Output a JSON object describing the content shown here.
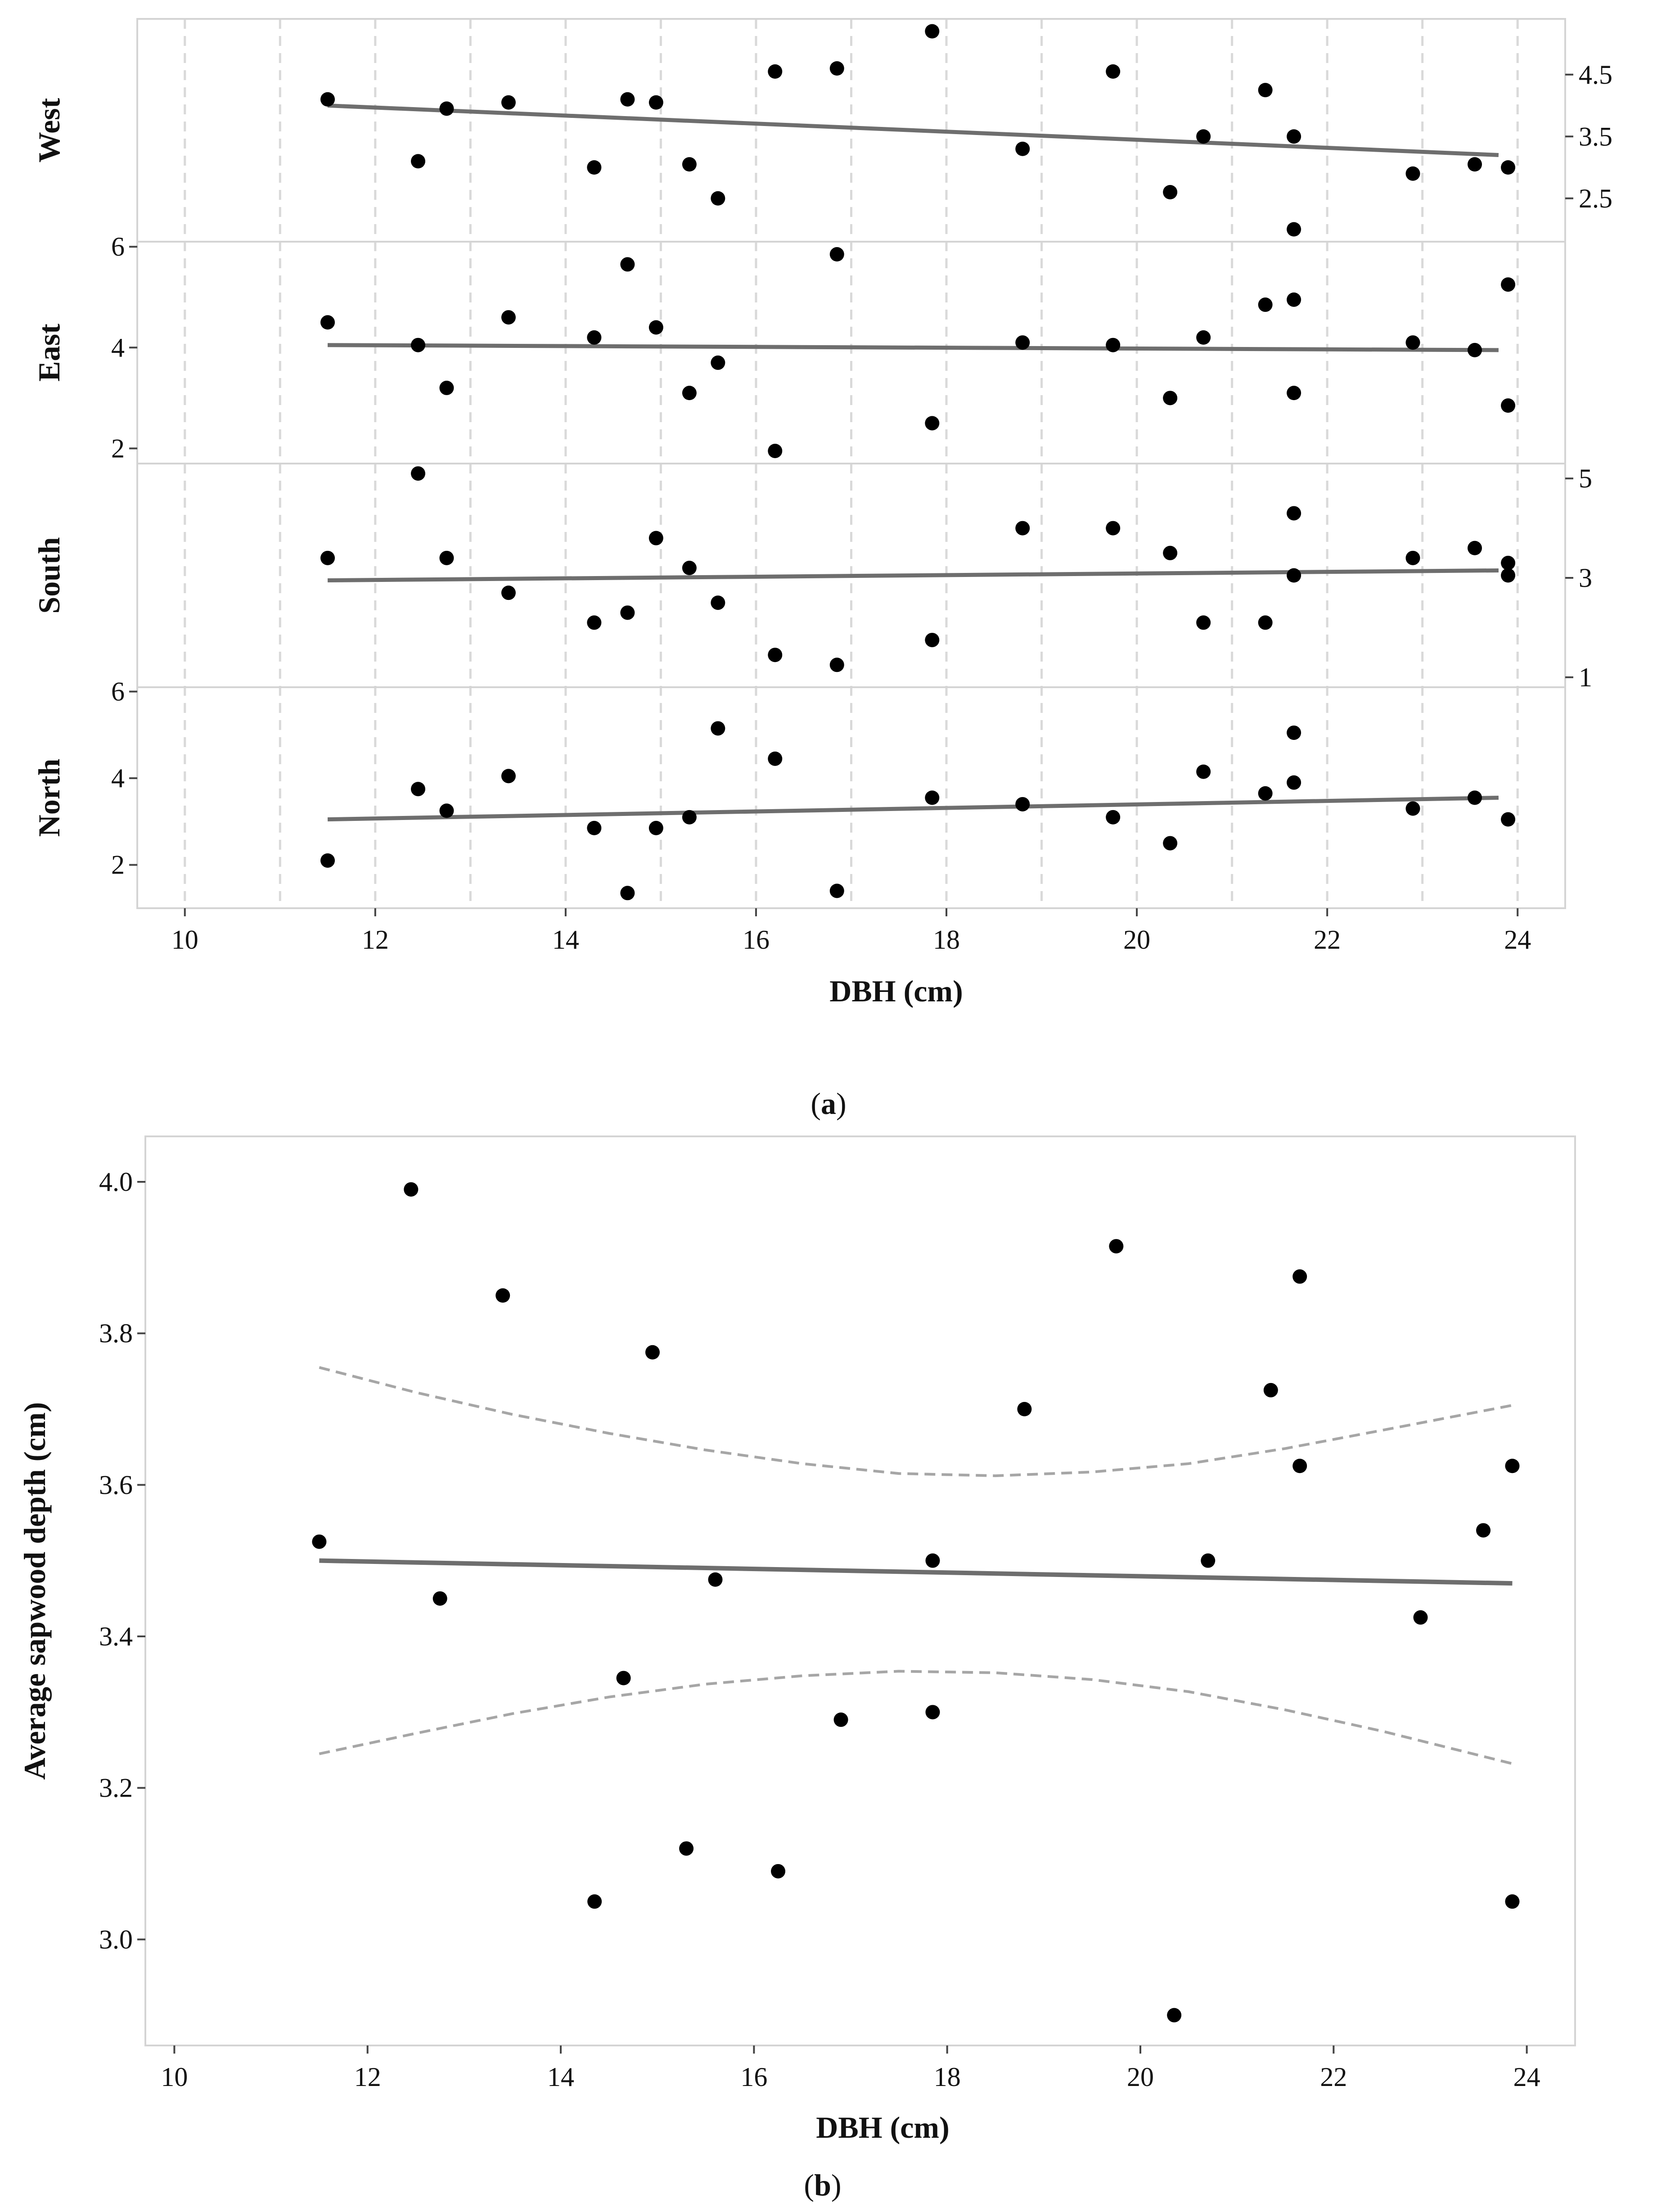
{
  "chart_data": [
    {
      "id": "a",
      "type": "scatter",
      "caption_letter": "a",
      "xlabel": "DBH (cm)",
      "xlim": [
        9.5,
        24.5
      ],
      "x_ticks": [
        "10",
        "12",
        "14",
        "16",
        "18",
        "20",
        "22",
        "24"
      ],
      "x_tick_values": [
        10,
        12,
        14,
        16,
        18,
        20,
        22,
        24
      ],
      "grid": "dashed vertical",
      "panels": [
        {
          "name": "West",
          "ylim": [
            1.8,
            5.4
          ],
          "y_ticks": [
            "2.5",
            "3.5",
            "4.5"
          ],
          "y_tick_values": [
            2.5,
            3.5,
            4.5
          ],
          "tick_side": "right",
          "fit": {
            "x": [
              11.5,
              23.8
            ],
            "y": [
              4.0,
              3.2
            ]
          },
          "points": [
            [
              11.5,
              4.1
            ],
            [
              12.45,
              3.1
            ],
            [
              12.75,
              3.95
            ],
            [
              13.4,
              4.05
            ],
            [
              14.3,
              3.0
            ],
            [
              14.65,
              4.1
            ],
            [
              14.95,
              4.05
            ],
            [
              15.3,
              3.05
            ],
            [
              15.6,
              2.5
            ],
            [
              16.2,
              4.55
            ],
            [
              16.85,
              4.6
            ],
            [
              17.85,
              5.2
            ],
            [
              18.8,
              3.3
            ],
            [
              19.75,
              4.55
            ],
            [
              20.35,
              2.6
            ],
            [
              20.7,
              3.5
            ],
            [
              21.35,
              4.25
            ],
            [
              21.65,
              3.5
            ],
            [
              21.65,
              2.0
            ],
            [
              22.9,
              2.9
            ],
            [
              23.55,
              3.05
            ],
            [
              23.9,
              3.0
            ]
          ]
        },
        {
          "name": "East",
          "ylim": [
            1.7,
            6.1
          ],
          "y_ticks": [
            "2",
            "4",
            "6"
          ],
          "y_tick_values": [
            2,
            4,
            6
          ],
          "tick_side": "left",
          "fit": {
            "x": [
              11.5,
              23.8
            ],
            "y": [
              4.05,
              3.95
            ]
          },
          "points": [
            [
              11.5,
              4.5
            ],
            [
              12.45,
              4.05
            ],
            [
              12.75,
              3.2
            ],
            [
              13.4,
              4.6
            ],
            [
              14.3,
              4.2
            ],
            [
              14.65,
              5.65
            ],
            [
              14.95,
              4.4
            ],
            [
              15.3,
              3.1
            ],
            [
              15.6,
              3.7
            ],
            [
              16.2,
              1.95
            ],
            [
              16.85,
              5.85
            ],
            [
              17.85,
              2.5
            ],
            [
              18.8,
              4.1
            ],
            [
              19.75,
              4.05
            ],
            [
              20.35,
              3.0
            ],
            [
              20.7,
              4.2
            ],
            [
              21.35,
              4.85
            ],
            [
              21.65,
              4.95
            ],
            [
              21.65,
              3.1
            ],
            [
              22.9,
              4.1
            ],
            [
              23.55,
              3.95
            ],
            [
              23.9,
              5.25
            ],
            [
              23.9,
              2.85
            ]
          ]
        },
        {
          "name": "South",
          "ylim": [
            0.8,
            5.3
          ],
          "y_ticks": [
            "1",
            "3",
            "5"
          ],
          "y_tick_values": [
            1,
            3,
            5
          ],
          "tick_side": "right",
          "fit": {
            "x": [
              11.5,
              23.8
            ],
            "y": [
              2.95,
              3.15
            ]
          },
          "points": [
            [
              11.5,
              3.4
            ],
            [
              12.45,
              5.1
            ],
            [
              12.75,
              3.4
            ],
            [
              13.4,
              2.7
            ],
            [
              14.3,
              2.1
            ],
            [
              14.65,
              2.3
            ],
            [
              14.95,
              3.8
            ],
            [
              15.3,
              3.2
            ],
            [
              15.6,
              2.5
            ],
            [
              16.2,
              1.45
            ],
            [
              16.85,
              1.25
            ],
            [
              17.85,
              1.75
            ],
            [
              18.8,
              4.0
            ],
            [
              19.75,
              4.0
            ],
            [
              20.35,
              3.5
            ],
            [
              20.7,
              2.1
            ],
            [
              21.35,
              2.1
            ],
            [
              21.65,
              4.3
            ],
            [
              21.65,
              3.05
            ],
            [
              22.9,
              3.4
            ],
            [
              23.55,
              3.6
            ],
            [
              23.9,
              3.3
            ],
            [
              23.9,
              3.05
            ]
          ]
        },
        {
          "name": "North",
          "ylim": [
            1.0,
            6.1
          ],
          "y_ticks": [
            "2",
            "4",
            "6"
          ],
          "y_tick_values": [
            2,
            4,
            6
          ],
          "tick_side": "left",
          "fit": {
            "x": [
              11.5,
              23.8
            ],
            "y": [
              3.05,
              3.55
            ]
          },
          "points": [
            [
              11.5,
              2.1
            ],
            [
              12.45,
              3.75
            ],
            [
              12.75,
              3.25
            ],
            [
              13.4,
              4.05
            ],
            [
              14.3,
              2.85
            ],
            [
              14.65,
              1.35
            ],
            [
              14.95,
              2.85
            ],
            [
              15.3,
              3.1
            ],
            [
              15.6,
              5.15
            ],
            [
              16.2,
              4.45
            ],
            [
              16.85,
              1.4
            ],
            [
              17.85,
              3.55
            ],
            [
              18.8,
              3.4
            ],
            [
              19.75,
              3.1
            ],
            [
              20.35,
              2.5
            ],
            [
              20.7,
              4.15
            ],
            [
              21.35,
              3.65
            ],
            [
              21.65,
              5.05
            ],
            [
              21.65,
              3.9
            ],
            [
              22.9,
              3.3
            ],
            [
              23.55,
              3.55
            ],
            [
              23.9,
              3.05
            ]
          ]
        }
      ]
    },
    {
      "id": "b",
      "type": "scatter",
      "caption_letter": "b",
      "xlabel": "DBH (cm)",
      "ylabel": "Average sapwood depth (cm)",
      "xlim": [
        9.7,
        24.5
      ],
      "ylim": [
        2.86,
        4.06
      ],
      "x_ticks": [
        "10",
        "12",
        "14",
        "16",
        "18",
        "20",
        "22",
        "24"
      ],
      "x_tick_values": [
        10,
        12,
        14,
        16,
        18,
        20,
        22,
        24
      ],
      "y_ticks": [
        "3.0",
        "3.2",
        "3.4",
        "3.6",
        "3.8",
        "4.0"
      ],
      "y_tick_values": [
        3.0,
        3.2,
        3.4,
        3.6,
        3.8,
        4.0
      ],
      "grid": "none",
      "fit": {
        "x": [
          11.5,
          23.85
        ],
        "y": [
          3.5,
          3.47
        ]
      },
      "confidence_upper": {
        "x": [
          11.5,
          12.5,
          13.5,
          14.5,
          15.5,
          16.5,
          17.5,
          18.5,
          19.5,
          20.5,
          21.5,
          22.5,
          23.85
        ],
        "y": [
          3.755,
          3.722,
          3.693,
          3.668,
          3.646,
          3.628,
          3.615,
          3.612,
          3.617,
          3.628,
          3.648,
          3.672,
          3.705
        ]
      },
      "confidence_lower": {
        "x": [
          11.5,
          12.5,
          13.5,
          14.5,
          15.5,
          16.5,
          17.5,
          18.5,
          19.5,
          20.5,
          21.5,
          22.5,
          23.85
        ],
        "y": [
          3.245,
          3.272,
          3.298,
          3.32,
          3.337,
          3.348,
          3.354,
          3.352,
          3.343,
          3.327,
          3.303,
          3.275,
          3.232
        ]
      },
      "points": [
        [
          11.5,
          3.525
        ],
        [
          12.45,
          3.99
        ],
        [
          12.75,
          3.45
        ],
        [
          13.4,
          3.85
        ],
        [
          14.35,
          3.05
        ],
        [
          14.65,
          3.345
        ],
        [
          14.95,
          3.775
        ],
        [
          15.3,
          3.12
        ],
        [
          15.6,
          3.475
        ],
        [
          16.25,
          3.09
        ],
        [
          16.9,
          3.29
        ],
        [
          17.85,
          3.5
        ],
        [
          17.85,
          3.3
        ],
        [
          18.8,
          3.7
        ],
        [
          19.75,
          3.915
        ],
        [
          20.35,
          2.9
        ],
        [
          20.7,
          3.5
        ],
        [
          21.35,
          3.725
        ],
        [
          21.65,
          3.875
        ],
        [
          21.65,
          3.625
        ],
        [
          22.9,
          3.425
        ],
        [
          23.55,
          3.54
        ],
        [
          23.85,
          3.625
        ],
        [
          23.85,
          3.05
        ]
      ]
    }
  ]
}
